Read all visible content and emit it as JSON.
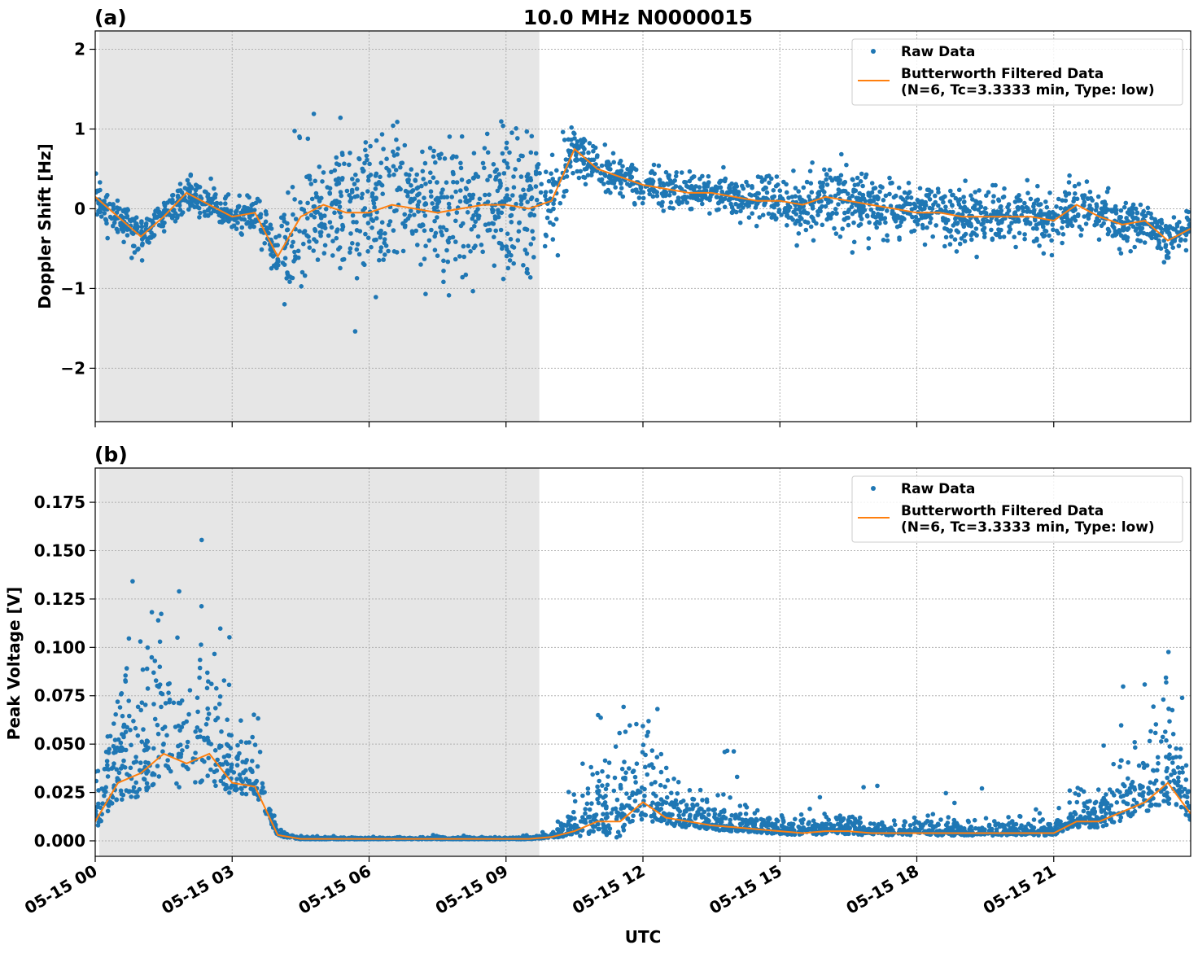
{
  "title": "10.0 MHz N0000015",
  "colors": {
    "raw": "#1f77b4",
    "filtered": "#ff7f0e",
    "shade": "#e6e6e6",
    "grid": "#b0b0b0"
  },
  "chart_data": [
    {
      "type": "scatter",
      "panel_label": "(a)",
      "ylabel": "Doppler Shift [Hz]",
      "xlabel": "",
      "xlim_hours": [
        0,
        24
      ],
      "ylim": [
        -2.67,
        2.23
      ],
      "yticks": [
        -2,
        -1,
        0,
        1,
        2
      ],
      "ytick_labels": [
        "−2",
        "−1",
        "0",
        "1",
        "2"
      ],
      "grid": true,
      "legend_placement": "top-right",
      "legend": [
        "Raw Data",
        "Butterworth Filtered Data",
        "(N=6, Tc=3.3333 min, Type: low)"
      ],
      "shaded_span_hours": [
        0.09,
        9.73
      ],
      "filtered_x_hours_step": 0.5,
      "filtered_values": [
        0.15,
        -0.1,
        -0.35,
        -0.1,
        0.2,
        0.05,
        -0.1,
        -0.05,
        -0.6,
        -0.1,
        0.05,
        -0.05,
        -0.05,
        0.05,
        0,
        -0.05,
        0,
        0.05,
        0.05,
        0,
        0.1,
        0.75,
        0.5,
        0.4,
        0.3,
        0.25,
        0.2,
        0.2,
        0.15,
        0.1,
        0.1,
        0.05,
        0.15,
        0.1,
        0.05,
        0,
        -0.05,
        -0.05,
        -0.1,
        -0.1,
        -0.1,
        -0.1,
        -0.15,
        0.05,
        -0.1,
        -0.2,
        -0.15,
        -0.4,
        -0.25
      ],
      "raw_spread": [
        0.2,
        0.2,
        0.2,
        0.2,
        0.2,
        0.2,
        0.2,
        0.25,
        0.4,
        0.8,
        0.8,
        0.8,
        0.8,
        0.8,
        0.8,
        0.8,
        0.8,
        0.8,
        0.8,
        0.8,
        0.6,
        0.3,
        0.25,
        0.2,
        0.2,
        0.2,
        0.2,
        0.2,
        0.2,
        0.2,
        0.25,
        0.35,
        0.4,
        0.35,
        0.35,
        0.3,
        0.3,
        0.3,
        0.35,
        0.35,
        0.3,
        0.3,
        0.3,
        0.3,
        0.25,
        0.25,
        0.25,
        0.25,
        0.2
      ]
    },
    {
      "type": "scatter",
      "panel_label": "(b)",
      "ylabel": "Peak Voltage [V]",
      "xlabel": "UTC",
      "xlim_hours": [
        0,
        24
      ],
      "ylim": [
        -0.008,
        0.1927
      ],
      "yticks": [
        0,
        0.025,
        0.05,
        0.075,
        0.1,
        0.125,
        0.15,
        0.175
      ],
      "ytick_labels": [
        "0.000",
        "0.025",
        "0.050",
        "0.075",
        "0.100",
        "0.125",
        "0.150",
        "0.175"
      ],
      "grid": true,
      "legend_placement": "top-right",
      "legend": [
        "Raw Data",
        "Butterworth Filtered Data",
        "(N=6, Tc=3.3333 min, Type: low)"
      ],
      "shaded_span_hours": [
        0.09,
        9.73
      ],
      "filtered_x_hours_step": 0.5,
      "filtered_values": [
        0.01,
        0.03,
        0.035,
        0.045,
        0.04,
        0.045,
        0.03,
        0.028,
        0.003,
        0.001,
        0.001,
        0.001,
        0.001,
        0.001,
        0.001,
        0.001,
        0.001,
        0.001,
        0.001,
        0.001,
        0.002,
        0.005,
        0.01,
        0.01,
        0.02,
        0.012,
        0.01,
        0.008,
        0.007,
        0.006,
        0.005,
        0.004,
        0.005,
        0.005,
        0.004,
        0.004,
        0.004,
        0.004,
        0.004,
        0.004,
        0.004,
        0.004,
        0.004,
        0.01,
        0.01,
        0.015,
        0.02,
        0.03,
        0.014
      ],
      "raw_spread": [
        0.015,
        0.03,
        0.04,
        0.05,
        0.045,
        0.05,
        0.02,
        0.015,
        0.002,
        0.0005,
        0.0005,
        0.0005,
        0.0005,
        0.0005,
        0.0005,
        0.0005,
        0.0005,
        0.0005,
        0.0005,
        0.0005,
        0.001,
        0.01,
        0.02,
        0.03,
        0.03,
        0.015,
        0.01,
        0.008,
        0.007,
        0.006,
        0.005,
        0.004,
        0.005,
        0.005,
        0.004,
        0.004,
        0.004,
        0.004,
        0.004,
        0.004,
        0.004,
        0.004,
        0.004,
        0.01,
        0.01,
        0.015,
        0.02,
        0.035,
        0.015
      ]
    }
  ],
  "xtick_hours": [
    0,
    3,
    6,
    9,
    12,
    15,
    18,
    21
  ],
  "xtick_labels": [
    "05-15 00",
    "05-15 03",
    "05-15 06",
    "05-15 09",
    "05-15 12",
    "05-15 15",
    "05-15 18",
    "05-15 21"
  ]
}
